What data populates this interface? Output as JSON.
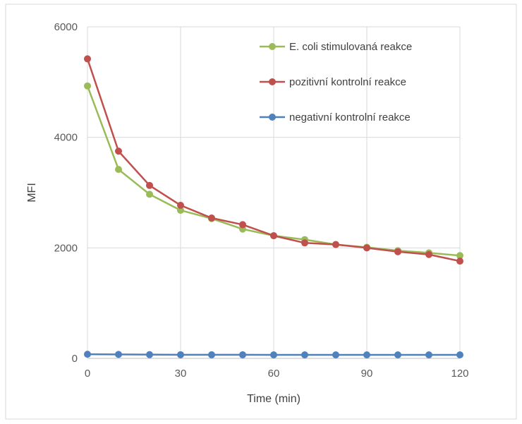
{
  "chart_data": {
    "type": "line",
    "title": "",
    "xlabel": "Time (min)",
    "ylabel": "MFI",
    "xlim": [
      0,
      120
    ],
    "ylim": [
      0,
      6000
    ],
    "xticks": [
      0,
      30,
      60,
      90,
      120
    ],
    "yticks": [
      0,
      2000,
      4000,
      6000
    ],
    "grid": true,
    "legend_position": "top-right",
    "x": [
      0,
      10,
      20,
      30,
      40,
      50,
      60,
      70,
      80,
      90,
      100,
      110,
      120
    ],
    "series": [
      {
        "name": "E. coli stimulovaná reakce",
        "color": "#9bbb59",
        "values": [
          4930,
          3420,
          2970,
          2680,
          2530,
          2340,
          2220,
          2150,
          2060,
          2010,
          1950,
          1910,
          1860
        ]
      },
      {
        "name": "pozitivní kontrolní reakce",
        "color": "#c0504d",
        "values": [
          5420,
          3750,
          3130,
          2770,
          2540,
          2420,
          2220,
          2090,
          2060,
          2000,
          1930,
          1880,
          1760
        ]
      },
      {
        "name": "negativní kontrolní reakce",
        "color": "#4f81bd",
        "values": [
          75,
          72,
          68,
          66,
          65,
          65,
          64,
          64,
          64,
          64,
          64,
          64,
          64
        ]
      }
    ]
  }
}
